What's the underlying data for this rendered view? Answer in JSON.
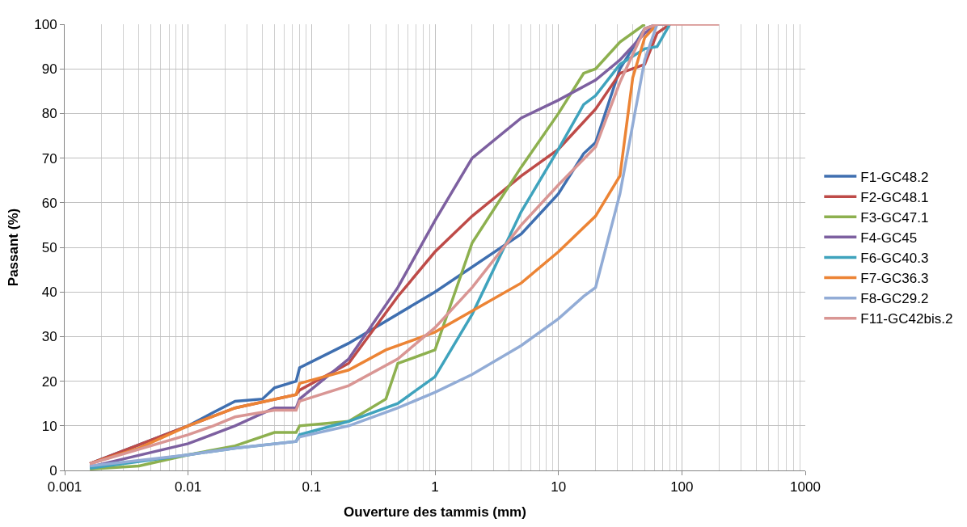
{
  "chart_data": {
    "type": "line",
    "xlabel": "Ouverture des tammis (mm)",
    "ylabel": "Passant (%)",
    "log": "x",
    "grid": true,
    "legend": "right",
    "marker": "none",
    "line_style": "solid",
    "xlim": [
      0.001,
      1000
    ],
    "xticks": [
      0.001,
      0.01,
      0.1,
      1,
      10,
      100,
      1000
    ],
    "ylim": [
      0,
      100
    ],
    "yticks": [
      0,
      10,
      20,
      30,
      40,
      50,
      60,
      70,
      80,
      90,
      100
    ],
    "series": [
      {
        "name": "F1-GC48.2",
        "color": "#3f6fb0",
        "x": [
          0.0016,
          0.01,
          0.016,
          0.024,
          0.04,
          0.05,
          0.075,
          0.08,
          0.2,
          1,
          5,
          10,
          16,
          20,
          31.5,
          50,
          63,
          80
        ],
        "values": [
          1.5,
          10,
          13,
          15.5,
          16,
          18.5,
          20,
          23,
          28.5,
          40,
          53,
          62,
          71,
          73.5,
          90,
          99,
          100,
          100
        ]
      },
      {
        "name": "F2-GC48.1",
        "color": "#be4b48",
        "x": [
          0.0016,
          0.01,
          0.024,
          0.075,
          0.08,
          0.2,
          0.5,
          1,
          2,
          5,
          10,
          20,
          31.5,
          50,
          63,
          80
        ],
        "values": [
          1.5,
          10,
          14,
          17,
          18,
          24,
          39,
          49,
          57,
          66,
          72,
          81,
          89,
          91,
          98,
          100
        ]
      },
      {
        "name": "F3-GC47.1",
        "color": "#8db04f",
        "x": [
          0.0016,
          0.004,
          0.01,
          0.024,
          0.05,
          0.075,
          0.08,
          0.2,
          0.4,
          0.5,
          1,
          2,
          5,
          10,
          16,
          20,
          31.5,
          50
        ],
        "values": [
          0.3,
          1,
          3.5,
          5.5,
          8.5,
          8.5,
          10,
          11,
          16,
          24,
          27,
          51,
          68,
          80,
          89,
          90,
          96,
          100
        ]
      },
      {
        "name": "F4-GC45",
        "color": "#7d60a0",
        "x": [
          0.0016,
          0.01,
          0.024,
          0.05,
          0.075,
          0.08,
          0.2,
          0.5,
          1,
          2,
          5,
          10,
          20,
          31.5,
          50,
          63
        ],
        "values": [
          0.8,
          6,
          10,
          14,
          14,
          16,
          25,
          41,
          56,
          70,
          79,
          83,
          87.5,
          92,
          98,
          100
        ]
      },
      {
        "name": "F6-GC40.3",
        "color": "#3fa3bd",
        "x": [
          0.0016,
          0.01,
          0.024,
          0.075,
          0.08,
          0.2,
          0.5,
          1,
          2,
          5,
          10,
          16,
          20,
          31.5,
          50,
          63,
          80
        ],
        "values": [
          0.5,
          3.5,
          5,
          6.5,
          8,
          11,
          15,
          21,
          35,
          58,
          72,
          82,
          84,
          91,
          94.5,
          95,
          100
        ]
      },
      {
        "name": "F7-GC36.3",
        "color": "#ec8435",
        "x": [
          0.0016,
          0.004,
          0.01,
          0.024,
          0.075,
          0.08,
          0.2,
          0.4,
          1,
          5,
          10,
          20,
          31.5,
          40,
          50,
          63
        ],
        "values": [
          1.5,
          5,
          10,
          14,
          17,
          19.5,
          22.5,
          27,
          31,
          42,
          49,
          57,
          66,
          88,
          97,
          100
        ]
      },
      {
        "name": "F8-GC29.2",
        "color": "#92acd6",
        "x": [
          0.0016,
          0.01,
          0.024,
          0.075,
          0.08,
          0.2,
          0.5,
          1,
          2,
          5,
          10,
          16,
          20,
          31.5,
          50,
          63
        ],
        "values": [
          1,
          3.5,
          5,
          6.5,
          7.5,
          10,
          14,
          17.5,
          21.5,
          28,
          34,
          39,
          41,
          62,
          92,
          100
        ]
      },
      {
        "name": "F11-GC42bis.2",
        "color": "#d99694",
        "x": [
          0.0016,
          0.01,
          0.016,
          0.024,
          0.05,
          0.075,
          0.08,
          0.2,
          0.5,
          1,
          2,
          5,
          10,
          20,
          31.5,
          50,
          63,
          200
        ],
        "values": [
          1.5,
          8,
          10,
          12,
          13.5,
          13.5,
          15.5,
          19,
          25,
          32,
          41,
          55,
          64,
          72.5,
          87,
          99,
          100,
          100
        ]
      }
    ]
  }
}
